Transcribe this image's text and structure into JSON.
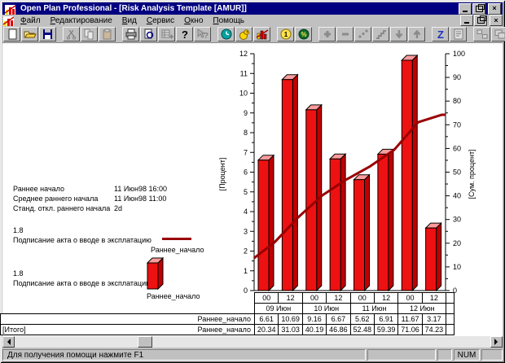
{
  "window": {
    "title": "Open Plan Professional - [Risk Analysis Template [AMUR]]"
  },
  "menu": {
    "items": [
      "Файл",
      "Редактирование",
      "Вид",
      "Сервис",
      "Окно",
      "Помощь"
    ]
  },
  "toolbar": {
    "groups": [
      [
        {
          "name": "new-file",
          "enabled": true
        },
        {
          "name": "open-file",
          "enabled": true
        },
        {
          "name": "save",
          "enabled": true
        }
      ],
      [
        {
          "name": "cut",
          "enabled": false
        },
        {
          "name": "copy",
          "enabled": false
        },
        {
          "name": "paste",
          "enabled": false
        }
      ],
      [
        {
          "name": "print",
          "enabled": true
        },
        {
          "name": "print-preview",
          "enabled": true
        },
        {
          "name": "grid-plus",
          "enabled": false
        },
        {
          "name": "help",
          "enabled": true
        },
        {
          "name": "context-help",
          "enabled": false
        }
      ],
      [
        {
          "name": "time-analysis-clock",
          "enabled": true
        },
        {
          "name": "resource-duck",
          "enabled": true
        },
        {
          "name": "risk-histogram",
          "enabled": true
        }
      ],
      [
        {
          "name": "coin-1",
          "enabled": true
        },
        {
          "name": "percent",
          "enabled": true
        }
      ],
      [
        {
          "name": "plus",
          "enabled": false
        },
        {
          "name": "minus",
          "enabled": false
        },
        {
          "name": "link-dots",
          "enabled": false
        },
        {
          "name": "steps",
          "enabled": false
        },
        {
          "name": "arrow-down",
          "enabled": false
        },
        {
          "name": "arrow-up",
          "enabled": false
        }
      ],
      [
        {
          "name": "sort-z",
          "enabled": true
        },
        {
          "name": "notes",
          "enabled": false
        }
      ],
      [
        {
          "name": "tile-windows",
          "enabled": false
        },
        {
          "name": "cascade-windows",
          "enabled": false
        }
      ]
    ]
  },
  "info_panel": {
    "rows": [
      {
        "label": "Раннее начало",
        "value": "11 Июн98 16:00"
      },
      {
        "label": "Среднее раннего начала",
        "value": "11 Июн98 11:00"
      },
      {
        "label": "Станд. откл.  раннего начала",
        "value": "2d"
      }
    ],
    "legends": [
      {
        "value": "1.8",
        "task": "Подписание акта о вводе в эксплатацию",
        "series": "Раннее_начало",
        "swatch": "line"
      },
      {
        "value": "1.8",
        "task": "Подписание акта о вводе в эксплатацию",
        "series": "Раннее_начало",
        "swatch": "bar"
      }
    ]
  },
  "chart_data": {
    "type": "bar",
    "title": "",
    "left_axis": {
      "label": "[Процент]",
      "min": 0,
      "max": 12,
      "step": 1
    },
    "right_axis": {
      "label": "[Сум. процент]",
      "min": 0,
      "max": 100,
      "step": 10
    },
    "hours": [
      "00",
      "12",
      "00",
      "12",
      "00",
      "12",
      "00",
      "12"
    ],
    "dates": [
      "09 Июн",
      "10 Июн",
      "11 Июн",
      "12 Июн"
    ],
    "series": [
      {
        "name": "Раннее_начало",
        "type": "bar",
        "axis": "left",
        "color": "#ee1111",
        "values": [
          6.61,
          10.69,
          9.16,
          6.67,
          5.62,
          6.91,
          11.67,
          3.17
        ]
      },
      {
        "name": "Раннее_начало",
        "type": "line",
        "axis": "right",
        "color": "#990000",
        "start": 13.73,
        "values": [
          20.34,
          31.03,
          40.19,
          46.86,
          52.48,
          59.39,
          71.06,
          74.23
        ]
      }
    ],
    "colors": {
      "bar_front": "#ee1111",
      "bar_top": "#ff9c9c",
      "bar_side": "#c00000",
      "curve": "#990000"
    }
  },
  "table": {
    "row1_label": "Раннее_начало",
    "row2_left": "[Итого]",
    "row2_label": "Раннее_начало"
  },
  "status_bar": {
    "message": "Для получения помощи нажмите F1",
    "num": "NUM"
  }
}
